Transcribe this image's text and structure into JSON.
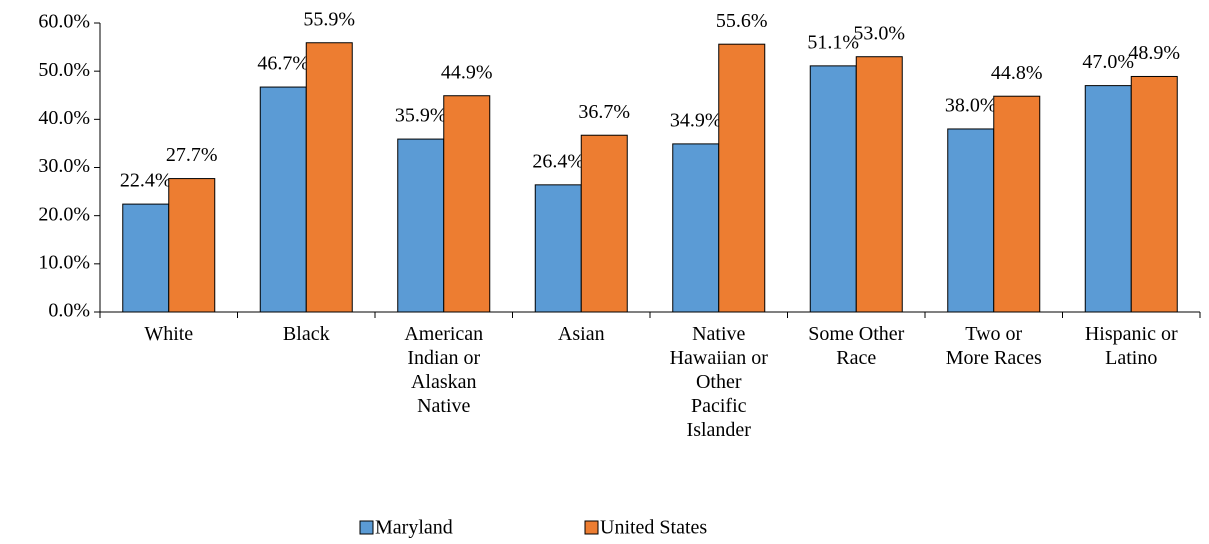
{
  "chart_data": {
    "type": "bar",
    "categories": [
      "White",
      "Black",
      "American Indian or Alaskan Native",
      "Asian",
      "Native Hawaiian or Other Pacific Islander",
      "Some Other Race",
      "Two or More Races",
      "Hispanic or Latino"
    ],
    "series": [
      {
        "name": "Maryland",
        "color": "#5b9bd5",
        "values": [
          22.4,
          46.7,
          35.9,
          26.4,
          34.9,
          51.1,
          38.0,
          47.0
        ],
        "value_labels": [
          "22.4%",
          "46.7%",
          "35.9%",
          "26.4%",
          "34.9%",
          "51.1%",
          "38.0%",
          "47.0%"
        ]
      },
      {
        "name": "United States",
        "color": "#ed7d31",
        "values": [
          27.7,
          55.9,
          44.9,
          36.7,
          55.6,
          53.0,
          44.8,
          48.9
        ],
        "value_labels": [
          "27.7%",
          "55.9%",
          "44.9%",
          "36.7%",
          "55.6%",
          "53.0%",
          "44.8%",
          "48.9%"
        ]
      }
    ],
    "ylim": [
      0,
      60
    ],
    "yticks": [
      {
        "value": 0,
        "label": "0.0%"
      },
      {
        "value": 10,
        "label": "10.0%"
      },
      {
        "value": 20,
        "label": "20.0%"
      },
      {
        "value": 30,
        "label": "30.0%"
      },
      {
        "value": 40,
        "label": "40.0%"
      },
      {
        "value": 50,
        "label": "50.0%"
      },
      {
        "value": 60,
        "label": "60.0%"
      }
    ],
    "grid": false,
    "legend": "bottom"
  }
}
